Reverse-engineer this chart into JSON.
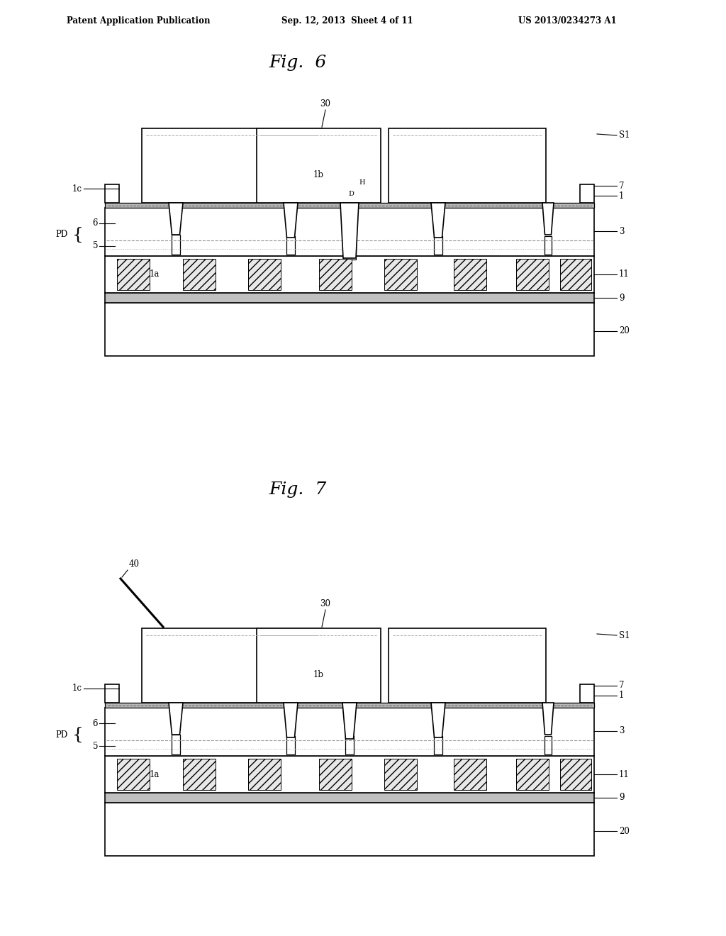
{
  "page_header_left": "Patent Application Publication",
  "page_header_mid": "Sep. 12, 2013  Sheet 4 of 11",
  "page_header_right": "US 2013/0234273 A1",
  "fig6_title": "Fig.  6",
  "fig7_title": "Fig.  7",
  "bg_color": "#ffffff",
  "line_color": "#000000",
  "fill_white": "#ffffff",
  "fill_gray": "#c0c0c0",
  "fill_iface": "#b8b8b8",
  "fill_hatch": "#e8e8e8",
  "hatch_pattern": "///"
}
